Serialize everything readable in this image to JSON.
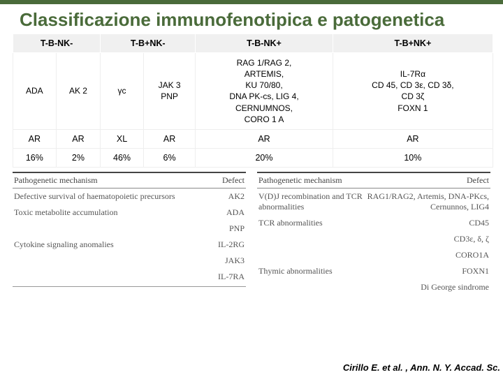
{
  "title": "Classificazione immunofenotipica e patogenetica",
  "header_bar_color": "#4a6b3a",
  "title_color": "#4a6b3a",
  "background_color": "#ffffff",
  "main_table": {
    "header_bg": "#f0f0f0",
    "columns": [
      {
        "label": "T-B-NK-",
        "span": 2
      },
      {
        "label": "T-B+NK-",
        "span": 2
      },
      {
        "label": "T-B-NK+",
        "span": 1
      },
      {
        "label": "T-B+NK+",
        "span": 1
      }
    ],
    "genes": [
      "ADA",
      "AK 2",
      "γc",
      "JAK 3\nPNP",
      "RAG 1/RAG 2,\nARTEMIS,\nKU 70/80,\nDNA PK-cs, LIG 4,\nCERNUMNOS,\nCORO 1 A",
      "IL-7Rα\nCD 45, CD 3ε, CD 3δ,\nCD 3ζ\nFOXN 1"
    ],
    "inheritance": [
      "AR",
      "AR",
      "XL",
      "AR",
      "AR",
      "AR"
    ],
    "percent": [
      "16%",
      "2%",
      "46%",
      "6%",
      "20%",
      "10%"
    ]
  },
  "sub_left": {
    "font_family": "Times New Roman",
    "header": [
      "Pathogenetic mechanism",
      "Defect"
    ],
    "rows": [
      [
        "Defective survival of haematopoietic precursors",
        "AK2"
      ],
      [
        "Toxic metabolite accumulation",
        "ADA"
      ],
      [
        "",
        "PNP"
      ],
      [
        "Cytokine signaling anomalies",
        "IL-2RG"
      ],
      [
        "",
        "JAK3"
      ],
      [
        "",
        "IL-7RA"
      ]
    ]
  },
  "sub_right": {
    "font_family": "Times New Roman",
    "header": [
      "Pathogenetic mechanism",
      "Defect"
    ],
    "rows": [
      [
        "V(D)J recombination and TCR abnormalities",
        "RAG1/RAG2, Artemis, DNA-PKcs, Cernunnos, LIG4"
      ],
      [
        "TCR abnormalities",
        "CD45"
      ],
      [
        "",
        "CD3ε, δ, ζ"
      ],
      [
        "",
        "CORO1A"
      ],
      [
        "Thymic abnormalities",
        "FOXN1"
      ],
      [
        "",
        "Di George sindrome"
      ]
    ]
  },
  "citation": "Cirillo E. et al. ,  Ann. N. Y. Accad. Sc."
}
